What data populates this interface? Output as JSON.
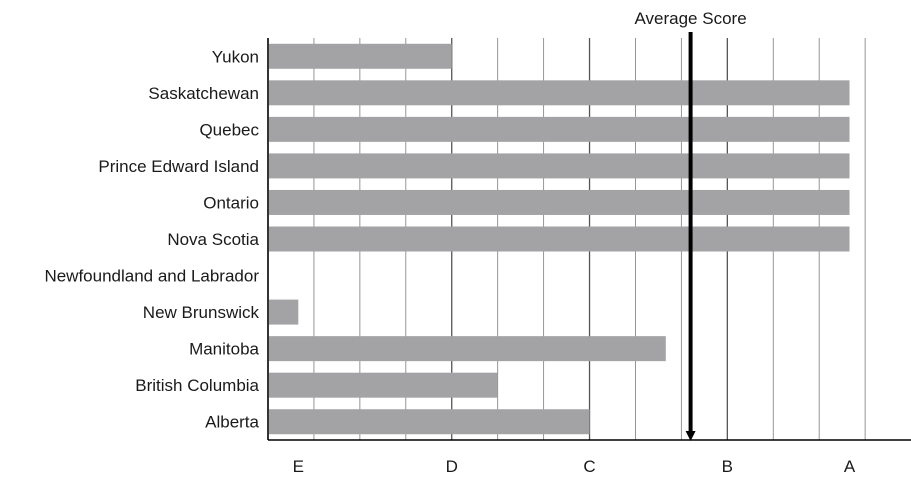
{
  "chart_data": {
    "type": "bar",
    "orientation": "horizontal",
    "categories": [
      "Yukon",
      "Saskatchewan",
      "Quebec",
      "Prince Edward Island",
      "Ontario",
      "Nova Scotia",
      "Newfoundland and Labrador",
      "New Brunswick",
      "Manitoba",
      "British Columbia",
      "Alberta"
    ],
    "values": [
      2.0,
      6.33,
      6.33,
      6.33,
      6.33,
      6.33,
      0,
      0.33,
      4.33,
      2.5,
      3.5
    ],
    "x_tick_positions": [
      0.33,
      2.0,
      3.5,
      5.0,
      6.33
    ],
    "x_tick_labels": [
      "E",
      "D",
      "C",
      "B",
      "A"
    ],
    "xlim": [
      0,
      7
    ],
    "grid": true,
    "average": {
      "label": "Average Score",
      "value": 4.6
    },
    "colors": {
      "bar": "#a3a3a5",
      "grid": "#777777",
      "axis": "#000000",
      "text": "#1a1a1a"
    }
  }
}
